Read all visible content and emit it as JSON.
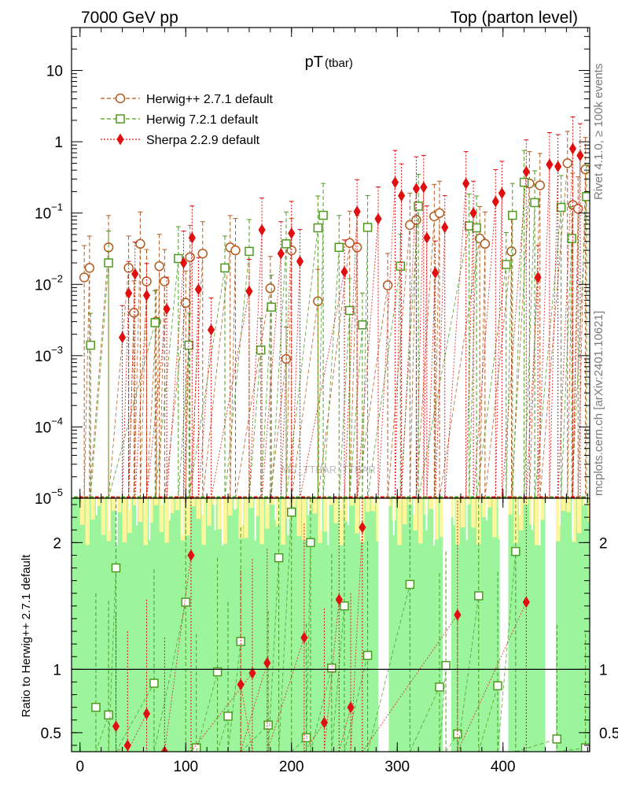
{
  "header": {
    "left": "7000 GeV pp",
    "right": "Top (parton level)"
  },
  "side_labels": {
    "rivet": "Rivet 4.1.0, ≥ 100k events",
    "mcplots": "mcplots.cern.ch [arXiv:2401.10621]"
  },
  "watermark": "MC_TTBAR_TTBAR",
  "colors": {
    "herwigpp": "#b35a1f",
    "herwig7": "#4d9a1f",
    "sherpa": "#e01010",
    "band_green": "#9cf59c",
    "band_yellow": "#fff59a"
  },
  "chart_data": [
    {
      "id": "main",
      "type": "scatter",
      "title": "pT",
      "title_sub": "(tbar)",
      "xlabel": "",
      "ylabel": "",
      "xlim": [
        -8,
        482
      ],
      "ylim": [
        1e-05,
        40
      ],
      "yscale": "log",
      "x_ticks": [
        0,
        100,
        200,
        300,
        400
      ],
      "y_ticks": [
        {
          "value": 1e-05,
          "base": "10",
          "exp": "−5"
        },
        {
          "value": 0.0001,
          "base": "10",
          "exp": "−4"
        },
        {
          "value": 0.001,
          "base": "10",
          "exp": "−3"
        },
        {
          "value": 0.01,
          "base": "10",
          "exp": "−2"
        },
        {
          "value": 0.1,
          "base": "10",
          "exp": "−1"
        },
        {
          "value": 1,
          "base": "1",
          "exp": ""
        },
        {
          "value": 10,
          "base": "10",
          "exp": ""
        }
      ],
      "legend_position": "top-left",
      "series": [
        {
          "name": "Herwig++ 2.7.1 default",
          "marker": "open-circle",
          "line": "dashed",
          "points": [
            [
              4,
              0.0125
            ],
            [
              9,
              0.017
            ],
            [
              27,
              0.033
            ],
            [
              46,
              0.017
            ],
            [
              51,
              0.004
            ],
            [
              57,
              0.037
            ],
            [
              63,
              0.011
            ],
            [
              72,
              0.003
            ],
            [
              75,
              0.018
            ],
            [
              80,
              0.011
            ],
            [
              100,
              0.0055
            ],
            [
              104,
              0.024
            ],
            [
              116,
              0.027
            ],
            [
              142,
              0.033
            ],
            [
              147,
              0.03
            ],
            [
              180,
              0.0088
            ],
            [
              195,
              0.0009
            ],
            [
              200,
              0.03
            ],
            [
              225,
              0.0058
            ],
            [
              255,
              0.038
            ],
            [
              262,
              0.033
            ],
            [
              291,
              0.0097
            ],
            [
              312,
              0.068
            ],
            [
              318,
              0.08
            ],
            [
              335,
              0.09
            ],
            [
              340,
              0.1
            ],
            [
              378,
              0.044
            ],
            [
              383,
              0.037
            ],
            [
              408,
              0.029
            ],
            [
              425,
              0.26
            ],
            [
              435,
              0.245
            ],
            [
              461,
              0.5
            ],
            [
              466,
              0.13
            ],
            [
              471,
              0.115
            ],
            [
              478,
              0.41
            ]
          ]
        },
        {
          "name": "Herwig 7.2.1 default",
          "marker": "open-square",
          "line": "dashed",
          "points": [
            [
              10,
              0.0014
            ],
            [
              27,
              0.02
            ],
            [
              71,
              0.0029
            ],
            [
              93,
              0.023
            ],
            [
              103,
              0.0014
            ],
            [
              137,
              0.017
            ],
            [
              160,
              0.029
            ],
            [
              171,
              0.0012
            ],
            [
              181,
              0.0048
            ],
            [
              195,
              0.037
            ],
            [
              225,
              0.062
            ],
            [
              230,
              0.093
            ],
            [
              245,
              0.033
            ],
            [
              255,
              0.0043
            ],
            [
              267,
              0.0027
            ],
            [
              272,
              0.063
            ],
            [
              303,
              0.018
            ],
            [
              320,
              0.125
            ],
            [
              368,
              0.066
            ],
            [
              375,
              0.062
            ],
            [
              403,
              0.019
            ],
            [
              409,
              0.093
            ],
            [
              420,
              0.27
            ],
            [
              430,
              0.14
            ],
            [
              455,
              0.12
            ],
            [
              465,
              0.044
            ],
            [
              479,
              0.17
            ]
          ]
        },
        {
          "name": "Sherpa 2.2.9 default",
          "marker": "filled-diamond",
          "line": "dotted",
          "points": [
            [
              40,
              0.0018
            ],
            [
              46,
              0.0075
            ],
            [
              52,
              0.014
            ],
            [
              63,
              0.007
            ],
            [
              82,
              0.0045
            ],
            [
              98,
              0.02
            ],
            [
              106,
              0.045
            ],
            [
              112,
              0.0085
            ],
            [
              124,
              0.0023
            ],
            [
              160,
              0.008
            ],
            [
              172,
              0.058
            ],
            [
              190,
              0.027
            ],
            [
              200,
              0.052
            ],
            [
              208,
              0.021
            ],
            [
              250,
              0.015
            ],
            [
              262,
              0.105
            ],
            [
              282,
              0.083
            ],
            [
              298,
              0.27
            ],
            [
              304,
              0.175
            ],
            [
              318,
              0.22
            ],
            [
              325,
              0.23
            ],
            [
              328,
              0.045
            ],
            [
              336,
              0.0145
            ],
            [
              345,
              0.063
            ],
            [
              365,
              0.26
            ],
            [
              372,
              0.1
            ],
            [
              393,
              0.145
            ],
            [
              399,
              0.19
            ],
            [
              422,
              0.38
            ],
            [
              433,
              0.0125
            ],
            [
              444,
              0.48
            ],
            [
              452,
              0.45
            ],
            [
              466,
              0.8
            ],
            [
              473,
              0.64
            ]
          ]
        }
      ]
    },
    {
      "id": "ratio",
      "type": "scatter",
      "title": "",
      "xlabel": "",
      "ylabel": "Ratio to Herwig++ 2.7.1 default",
      "xlim": [
        -8,
        482
      ],
      "ylim": [
        0.35,
        2.35
      ],
      "x_ticks": [
        0,
        100,
        200,
        300,
        400
      ],
      "y_ticks": [
        0.5,
        1,
        2
      ],
      "y_tick_labels": [
        "0.5",
        "1",
        "2"
      ],
      "reference_line": 1,
      "band_gaps": [
        [
          282,
          292
        ],
        [
          343,
          351
        ],
        [
          397,
          405
        ],
        [
          440,
          450
        ]
      ],
      "series": [
        {
          "name": "Herwig 7.2.1 default",
          "marker": "open-square",
          "points": [
            [
              15,
              0.7
            ],
            [
              27,
              0.64
            ],
            [
              34,
              1.8
            ],
            [
              70,
              0.89
            ],
            [
              100,
              1.53
            ],
            [
              110,
              0.38
            ],
            [
              130,
              0.98
            ],
            [
              140,
              0.63
            ],
            [
              152,
              1.22
            ],
            [
              178,
              0.56
            ],
            [
              188,
              1.88
            ],
            [
              200,
              2.24
            ],
            [
              214,
              0.46
            ],
            [
              218,
              2.0
            ],
            [
              238,
              1.01
            ],
            [
              250,
              1.5
            ],
            [
              272,
              1.11
            ],
            [
              312,
              1.67
            ],
            [
              340,
              0.86
            ],
            [
              346,
              1.03
            ],
            [
              357,
              0.49
            ],
            [
              377,
              1.58
            ],
            [
              395,
              0.87
            ],
            [
              412,
              1.93
            ],
            [
              451,
              0.45
            ],
            [
              478,
              0.38
            ]
          ]
        },
        {
          "name": "Sherpa 2.2.9 default",
          "marker": "filled-diamond",
          "points": [
            [
              34,
              0.55
            ],
            [
              45,
              0.4
            ],
            [
              63,
              0.65
            ],
            [
              80,
              0.35
            ],
            [
              105,
              1.9
            ],
            [
              163,
              0.97
            ],
            [
              152,
              0.88
            ],
            [
              177,
              1.05
            ],
            [
              212,
              1.25
            ],
            [
              231,
              0.58
            ],
            [
              245,
              1.55
            ],
            [
              256,
              0.7
            ],
            [
              267,
              2.12
            ],
            [
              357,
              1.43
            ],
            [
              422,
              1.53
            ]
          ]
        }
      ]
    }
  ]
}
